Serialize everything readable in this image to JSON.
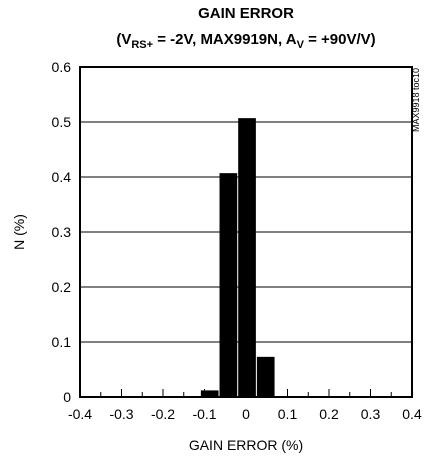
{
  "chart_data": {
    "type": "histogram",
    "title": "GAIN ERROR",
    "subtitle": [
      "(V",
      "RS+",
      " = -2V, MAX9919N, A",
      "V",
      " = +90V/V)"
    ],
    "side_note": "MAX9918 toc10",
    "x_label": "GAIN ERROR (%)",
    "y_label": "N (%)",
    "bins": [
      -0.11,
      -0.065,
      -0.02,
      0.025,
      0.07
    ],
    "values": [
      0.012,
      0.407,
      0.507,
      0.073
    ],
    "color": "#000000",
    "xlim": [
      -0.4,
      0.4
    ],
    "xticks": [
      -0.4,
      -0.3,
      -0.2,
      -0.1,
      0,
      0.1,
      0.2,
      0.3,
      0.4
    ],
    "ylim": [
      0,
      0.6
    ],
    "yticks": [
      0,
      0.1,
      0.2,
      0.3,
      0.4,
      0.5,
      0.6
    ],
    "grid": true
  }
}
